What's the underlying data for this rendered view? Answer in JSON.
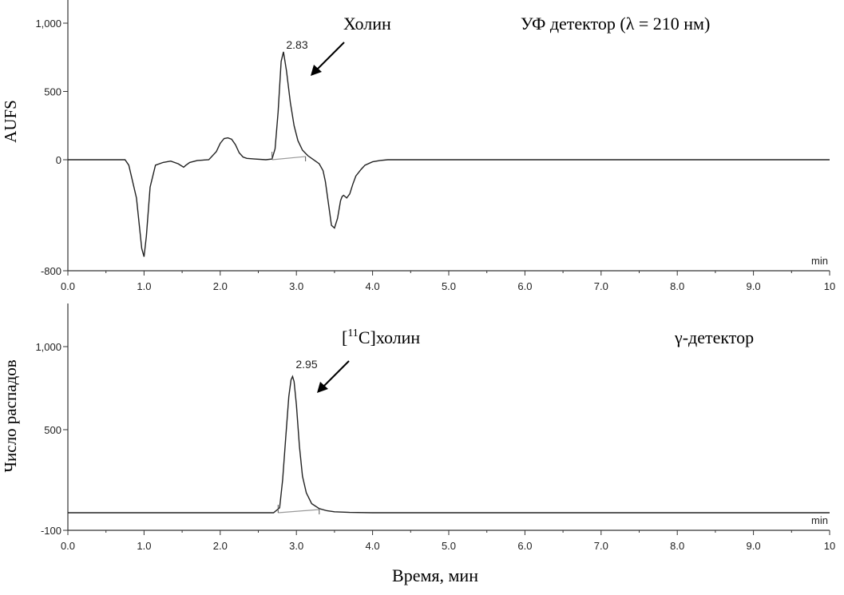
{
  "chart_data": [
    {
      "type": "line",
      "panel": "uv",
      "ylabel": "AUFS",
      "xunit": "min",
      "xlim": [
        0,
        10
      ],
      "ylim": [
        -800,
        1200
      ],
      "x_ticks": [
        0,
        1,
        2,
        3,
        4,
        5,
        6,
        7,
        8,
        9,
        10
      ],
      "x_tick_labels": [
        "0.0",
        "1.0",
        "2.0",
        "3.0",
        "4.0",
        "5.0",
        "6.0",
        "7.0",
        "8.0",
        "9.0",
        "10"
      ],
      "y_ticks": [
        -800,
        0,
        500,
        1000
      ],
      "y_tick_labels": [
        "-800",
        "0",
        "500",
        "1,000"
      ],
      "x": [
        0.0,
        0.75,
        0.8,
        0.9,
        0.97,
        1.0,
        1.03,
        1.08,
        1.15,
        1.25,
        1.35,
        1.45,
        1.52,
        1.55,
        1.6,
        1.7,
        1.85,
        1.95,
        2.0,
        2.05,
        2.1,
        2.15,
        2.2,
        2.25,
        2.3,
        2.35,
        2.45,
        2.6,
        2.68,
        2.72,
        2.76,
        2.8,
        2.83,
        2.87,
        2.92,
        2.97,
        3.02,
        3.08,
        3.15,
        3.2,
        3.25,
        3.3,
        3.35,
        3.38,
        3.42,
        3.46,
        3.5,
        3.54,
        3.58,
        3.6,
        3.62,
        3.66,
        3.7,
        3.74,
        3.78,
        3.85,
        3.9,
        4.0,
        4.1,
        4.2,
        4.4,
        5.0,
        6.0,
        7.0,
        8.0,
        9.0,
        10.0
      ],
      "series": [
        {
          "y": [
            0,
            0,
            -40,
            -280,
            -650,
            -710,
            -560,
            -200,
            -40,
            -20,
            -10,
            -30,
            -55,
            -40,
            -20,
            -5,
            0,
            60,
            120,
            155,
            160,
            150,
            110,
            50,
            20,
            10,
            5,
            0,
            5,
            80,
            350,
            720,
            790,
            650,
            420,
            250,
            140,
            70,
            30,
            10,
            -10,
            -30,
            -80,
            -160,
            -320,
            -480,
            -500,
            -430,
            -300,
            -270,
            -260,
            -280,
            -250,
            -180,
            -120,
            -70,
            -40,
            -15,
            -5,
            0,
            0,
            0,
            0,
            0,
            0,
            0,
            0
          ]
        }
      ],
      "peak": {
        "label": "2.83",
        "x": 2.83,
        "y": 790
      },
      "peak_window": [
        2.68,
        3.12
      ],
      "annotations": [
        "Холин",
        "УФ детектор (λ = 210 нм)"
      ]
    },
    {
      "type": "line",
      "panel": "gamma",
      "ylabel": "Число распадов",
      "xlabel": "Время, мин",
      "xunit": "min",
      "xlim": [
        0,
        10
      ],
      "ylim": [
        -100,
        1250
      ],
      "x_ticks": [
        0,
        1,
        2,
        3,
        4,
        5,
        6,
        7,
        8,
        9,
        10
      ],
      "x_tick_labels": [
        "0.0",
        "1.0",
        "2.0",
        "3.0",
        "4.0",
        "5.0",
        "6.0",
        "7.0",
        "8.0",
        "9.0",
        "10"
      ],
      "y_ticks": [
        -100,
        500,
        1000
      ],
      "y_tick_labels": [
        "-100",
        "500",
        "1,000"
      ],
      "x": [
        0.0,
        2.7,
        2.78,
        2.82,
        2.86,
        2.9,
        2.93,
        2.95,
        2.97,
        3.0,
        3.04,
        3.08,
        3.13,
        3.2,
        3.3,
        3.4,
        3.5,
        3.7,
        4.0,
        5.0,
        6.0,
        7.0,
        8.0,
        9.0,
        10.0
      ],
      "series": [
        {
          "y": [
            0,
            0,
            30,
            200,
            450,
            700,
            800,
            820,
            790,
            650,
            400,
            220,
            120,
            55,
            25,
            12,
            6,
            2,
            0,
            0,
            0,
            0,
            0,
            0,
            0
          ]
        }
      ],
      "peak": {
        "label": "2.95",
        "x": 2.95,
        "y": 820
      },
      "peak_window": [
        2.76,
        3.3
      ],
      "annotations": [
        "γ-детектор"
      ],
      "compound": {
        "open": "[",
        "isotope": "11",
        "rest": "C]холин"
      }
    }
  ],
  "colors": {
    "trace": "#222222",
    "baseline": "#999999",
    "axis": "#333333"
  }
}
